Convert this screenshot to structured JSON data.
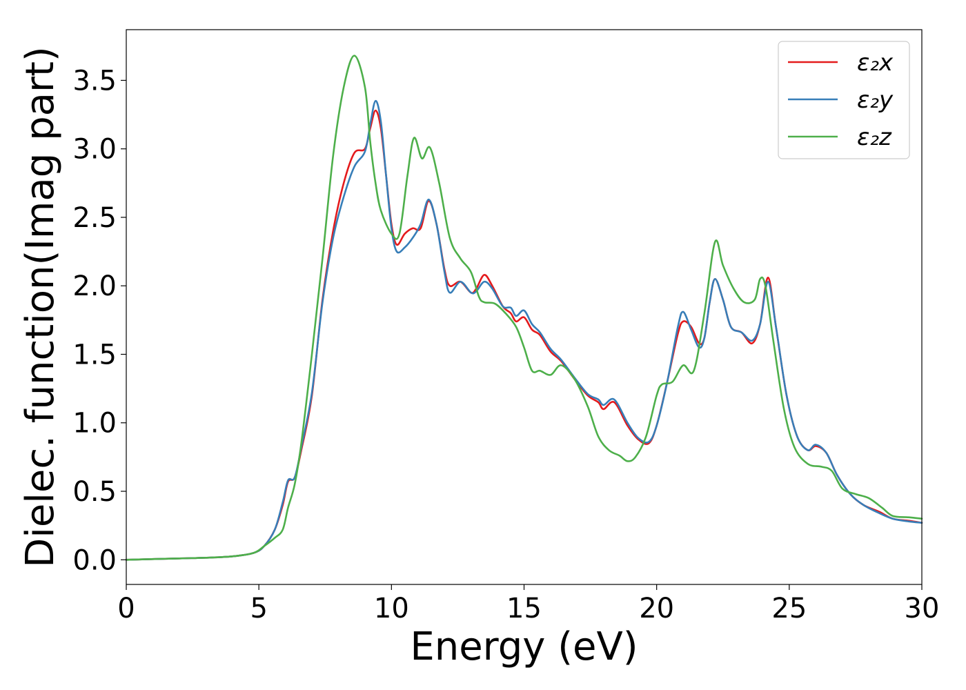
{
  "chart_data": {
    "type": "line",
    "xlabel": "Energy (eV)",
    "ylabel": "Dielec. function(Imag part)",
    "xlim": [
      0,
      30
    ],
    "ylim": [
      -0.18,
      3.87
    ],
    "x_ticks": [
      0,
      5,
      10,
      15,
      20,
      25,
      30
    ],
    "x_tick_labels": [
      "0",
      "5",
      "10",
      "15",
      "20",
      "25",
      "30"
    ],
    "y_ticks": [
      0.0,
      0.5,
      1.0,
      1.5,
      2.0,
      2.5,
      3.0,
      3.5
    ],
    "y_tick_labels": [
      "0.0",
      "0.5",
      "1.0",
      "1.5",
      "2.0",
      "2.5",
      "3.0",
      "3.5"
    ],
    "grid": false,
    "legend_position": "top-right",
    "series": [
      {
        "name": "ε₂x",
        "color": "#e41a1c",
        "points": [
          [
            0,
            0.0
          ],
          [
            2,
            0.01
          ],
          [
            3,
            0.015
          ],
          [
            4,
            0.025
          ],
          [
            4.8,
            0.05
          ],
          [
            5.2,
            0.1
          ],
          [
            5.6,
            0.22
          ],
          [
            5.9,
            0.4
          ],
          [
            6.1,
            0.57
          ],
          [
            6.35,
            0.6
          ],
          [
            6.6,
            0.8
          ],
          [
            7.0,
            1.2
          ],
          [
            7.4,
            1.9
          ],
          [
            7.8,
            2.4
          ],
          [
            8.2,
            2.75
          ],
          [
            8.6,
            2.97
          ],
          [
            9.0,
            3.0
          ],
          [
            9.2,
            3.15
          ],
          [
            9.4,
            3.28
          ],
          [
            9.6,
            3.15
          ],
          [
            9.8,
            2.8
          ],
          [
            10.0,
            2.45
          ],
          [
            10.2,
            2.3
          ],
          [
            10.5,
            2.38
          ],
          [
            10.8,
            2.42
          ],
          [
            11.1,
            2.42
          ],
          [
            11.4,
            2.62
          ],
          [
            11.7,
            2.45
          ],
          [
            12.0,
            2.12
          ],
          [
            12.2,
            2.0
          ],
          [
            12.6,
            2.03
          ],
          [
            13.0,
            1.95
          ],
          [
            13.2,
            1.98
          ],
          [
            13.5,
            2.08
          ],
          [
            13.8,
            2.0
          ],
          [
            14.2,
            1.85
          ],
          [
            14.5,
            1.8
          ],
          [
            14.7,
            1.74
          ],
          [
            15.0,
            1.77
          ],
          [
            15.3,
            1.68
          ],
          [
            15.6,
            1.64
          ],
          [
            16.0,
            1.52
          ],
          [
            16.4,
            1.45
          ],
          [
            16.9,
            1.32
          ],
          [
            17.4,
            1.2
          ],
          [
            17.8,
            1.15
          ],
          [
            18.0,
            1.1
          ],
          [
            18.4,
            1.15
          ],
          [
            18.9,
            0.98
          ],
          [
            19.3,
            0.88
          ],
          [
            19.7,
            0.85
          ],
          [
            20.0,
            0.98
          ],
          [
            20.4,
            1.3
          ],
          [
            20.8,
            1.65
          ],
          [
            21.0,
            1.74
          ],
          [
            21.3,
            1.7
          ],
          [
            21.6,
            1.58
          ],
          [
            21.8,
            1.62
          ],
          [
            22.0,
            1.88
          ],
          [
            22.2,
            2.05
          ],
          [
            22.5,
            1.9
          ],
          [
            22.8,
            1.7
          ],
          [
            23.2,
            1.66
          ],
          [
            23.6,
            1.58
          ],
          [
            23.9,
            1.72
          ],
          [
            24.2,
            2.06
          ],
          [
            24.5,
            1.7
          ],
          [
            24.9,
            1.2
          ],
          [
            25.3,
            0.9
          ],
          [
            25.7,
            0.8
          ],
          [
            26.0,
            0.83
          ],
          [
            26.4,
            0.78
          ],
          [
            26.8,
            0.62
          ],
          [
            27.3,
            0.48
          ],
          [
            27.8,
            0.4
          ],
          [
            28.4,
            0.35
          ],
          [
            28.9,
            0.3
          ],
          [
            29.5,
            0.285
          ],
          [
            30,
            0.27
          ]
        ]
      },
      {
        "name": "ε₂y",
        "color": "#377eb8",
        "points": [
          [
            0,
            0.0
          ],
          [
            2,
            0.01
          ],
          [
            3,
            0.015
          ],
          [
            4,
            0.025
          ],
          [
            4.8,
            0.05
          ],
          [
            5.2,
            0.1
          ],
          [
            5.6,
            0.22
          ],
          [
            5.9,
            0.42
          ],
          [
            6.1,
            0.58
          ],
          [
            6.35,
            0.6
          ],
          [
            6.6,
            0.82
          ],
          [
            7.0,
            1.22
          ],
          [
            7.4,
            1.88
          ],
          [
            7.8,
            2.35
          ],
          [
            8.2,
            2.65
          ],
          [
            8.6,
            2.87
          ],
          [
            9.0,
            2.98
          ],
          [
            9.2,
            3.18
          ],
          [
            9.4,
            3.35
          ],
          [
            9.6,
            3.2
          ],
          [
            9.8,
            2.8
          ],
          [
            10.0,
            2.42
          ],
          [
            10.2,
            2.25
          ],
          [
            10.5,
            2.28
          ],
          [
            10.8,
            2.35
          ],
          [
            11.1,
            2.45
          ],
          [
            11.4,
            2.63
          ],
          [
            11.7,
            2.45
          ],
          [
            12.0,
            2.1
          ],
          [
            12.2,
            1.95
          ],
          [
            12.6,
            2.03
          ],
          [
            13.0,
            1.95
          ],
          [
            13.2,
            1.96
          ],
          [
            13.5,
            2.03
          ],
          [
            13.8,
            1.98
          ],
          [
            14.2,
            1.85
          ],
          [
            14.5,
            1.84
          ],
          [
            14.7,
            1.78
          ],
          [
            15.0,
            1.82
          ],
          [
            15.3,
            1.72
          ],
          [
            15.6,
            1.66
          ],
          [
            16.0,
            1.54
          ],
          [
            16.4,
            1.46
          ],
          [
            16.9,
            1.33
          ],
          [
            17.4,
            1.21
          ],
          [
            17.8,
            1.17
          ],
          [
            18.0,
            1.13
          ],
          [
            18.4,
            1.17
          ],
          [
            18.9,
            1.0
          ],
          [
            19.3,
            0.89
          ],
          [
            19.7,
            0.86
          ],
          [
            20.0,
            0.98
          ],
          [
            20.4,
            1.3
          ],
          [
            20.8,
            1.7
          ],
          [
            21.0,
            1.81
          ],
          [
            21.3,
            1.68
          ],
          [
            21.6,
            1.55
          ],
          [
            21.8,
            1.62
          ],
          [
            22.0,
            1.88
          ],
          [
            22.2,
            2.05
          ],
          [
            22.5,
            1.9
          ],
          [
            22.8,
            1.7
          ],
          [
            23.2,
            1.66
          ],
          [
            23.6,
            1.6
          ],
          [
            23.9,
            1.72
          ],
          [
            24.2,
            2.03
          ],
          [
            24.5,
            1.7
          ],
          [
            24.9,
            1.2
          ],
          [
            25.3,
            0.9
          ],
          [
            25.7,
            0.8
          ],
          [
            26.0,
            0.84
          ],
          [
            26.4,
            0.78
          ],
          [
            26.8,
            0.62
          ],
          [
            27.3,
            0.48
          ],
          [
            27.8,
            0.4
          ],
          [
            28.4,
            0.34
          ],
          [
            28.9,
            0.3
          ],
          [
            29.5,
            0.28
          ],
          [
            30,
            0.27
          ]
        ]
      },
      {
        "name": "ε₂z",
        "color": "#4daf4a",
        "points": [
          [
            0,
            0.0
          ],
          [
            2,
            0.01
          ],
          [
            3,
            0.015
          ],
          [
            4,
            0.025
          ],
          [
            4.8,
            0.05
          ],
          [
            5.2,
            0.1
          ],
          [
            5.6,
            0.16
          ],
          [
            5.9,
            0.22
          ],
          [
            6.1,
            0.38
          ],
          [
            6.35,
            0.55
          ],
          [
            6.6,
            0.85
          ],
          [
            7.0,
            1.5
          ],
          [
            7.4,
            2.2
          ],
          [
            7.8,
            2.95
          ],
          [
            8.2,
            3.45
          ],
          [
            8.6,
            3.68
          ],
          [
            9.0,
            3.45
          ],
          [
            9.2,
            3.05
          ],
          [
            9.4,
            2.75
          ],
          [
            9.6,
            2.55
          ],
          [
            10.0,
            2.38
          ],
          [
            10.3,
            2.38
          ],
          [
            10.6,
            2.8
          ],
          [
            10.85,
            3.08
          ],
          [
            11.15,
            2.93
          ],
          [
            11.45,
            3.01
          ],
          [
            11.8,
            2.75
          ],
          [
            12.2,
            2.35
          ],
          [
            12.6,
            2.2
          ],
          [
            13.0,
            2.1
          ],
          [
            13.3,
            1.92
          ],
          [
            13.5,
            1.88
          ],
          [
            13.9,
            1.87
          ],
          [
            14.3,
            1.8
          ],
          [
            14.7,
            1.7
          ],
          [
            15.0,
            1.55
          ],
          [
            15.3,
            1.38
          ],
          [
            15.6,
            1.38
          ],
          [
            16.0,
            1.35
          ],
          [
            16.4,
            1.42
          ],
          [
            16.9,
            1.32
          ],
          [
            17.4,
            1.12
          ],
          [
            17.8,
            0.9
          ],
          [
            18.2,
            0.8
          ],
          [
            18.6,
            0.76
          ],
          [
            18.9,
            0.72
          ],
          [
            19.2,
            0.75
          ],
          [
            19.6,
            0.9
          ],
          [
            20.0,
            1.2
          ],
          [
            20.2,
            1.28
          ],
          [
            20.6,
            1.3
          ],
          [
            21.0,
            1.42
          ],
          [
            21.4,
            1.38
          ],
          [
            21.8,
            1.8
          ],
          [
            22.2,
            2.32
          ],
          [
            22.5,
            2.15
          ],
          [
            22.9,
            1.98
          ],
          [
            23.3,
            1.88
          ],
          [
            23.7,
            1.9
          ],
          [
            23.9,
            2.05
          ],
          [
            24.1,
            2.0
          ],
          [
            24.4,
            1.6
          ],
          [
            24.8,
            1.1
          ],
          [
            25.2,
            0.82
          ],
          [
            25.7,
            0.7
          ],
          [
            26.2,
            0.68
          ],
          [
            26.6,
            0.65
          ],
          [
            27.0,
            0.52
          ],
          [
            27.5,
            0.48
          ],
          [
            28.0,
            0.45
          ],
          [
            28.5,
            0.38
          ],
          [
            28.9,
            0.32
          ],
          [
            29.5,
            0.31
          ],
          [
            30,
            0.3
          ]
        ]
      }
    ]
  }
}
